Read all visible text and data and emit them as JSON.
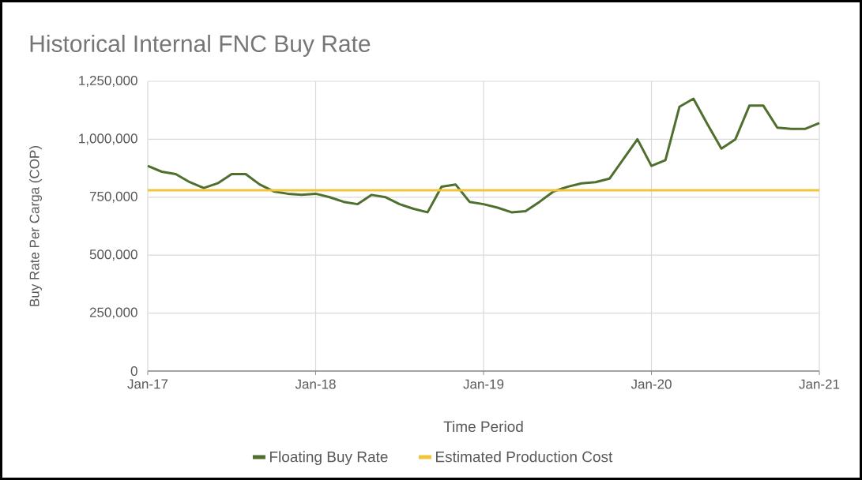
{
  "chart_data": {
    "type": "line",
    "title": "Historical Internal FNC Buy Rate",
    "xlabel": "Time Period",
    "ylabel": "Buy Rate Per Carga (COP)",
    "x": [
      "2017-01",
      "2017-02",
      "2017-03",
      "2017-04",
      "2017-05",
      "2017-06",
      "2017-07",
      "2017-08",
      "2017-09",
      "2017-10",
      "2017-11",
      "2017-12",
      "2018-01",
      "2018-02",
      "2018-03",
      "2018-04",
      "2018-05",
      "2018-06",
      "2018-07",
      "2018-08",
      "2018-09",
      "2018-10",
      "2018-11",
      "2018-12",
      "2019-01",
      "2019-02",
      "2019-03",
      "2019-04",
      "2019-05",
      "2019-06",
      "2019-07",
      "2019-08",
      "2019-09",
      "2019-10",
      "2019-11",
      "2019-12",
      "2020-01",
      "2020-02",
      "2020-03",
      "2020-04",
      "2020-05",
      "2020-06",
      "2020-07",
      "2020-08",
      "2020-09",
      "2020-10",
      "2020-11",
      "2020-12",
      "2021-01"
    ],
    "series": [
      {
        "name": "Floating Buy Rate",
        "color": "#4f6f2f",
        "values": [
          885000,
          860000,
          850000,
          815000,
          790000,
          810000,
          850000,
          850000,
          805000,
          775000,
          765000,
          760000,
          765000,
          750000,
          730000,
          720000,
          760000,
          750000,
          720000,
          700000,
          685000,
          795000,
          805000,
          730000,
          720000,
          705000,
          685000,
          690000,
          730000,
          775000,
          795000,
          810000,
          815000,
          830000,
          915000,
          1000000,
          885000,
          910000,
          1140000,
          1175000,
          1065000,
          960000,
          1000000,
          1145000,
          1145000,
          1050000,
          1045000,
          1045000,
          1070000
        ]
      },
      {
        "name": "Estimated Production Cost",
        "color": "#f0c53a",
        "x": [
          "2017-01",
          "2021-01"
        ],
        "values": [
          780000,
          780000
        ]
      }
    ],
    "xlim": [
      "2017-01",
      "2021-01"
    ],
    "xticks": [
      {
        "value": "2017-01",
        "label": "Jan-17"
      },
      {
        "value": "2018-01",
        "label": "Jan-18"
      },
      {
        "value": "2019-01",
        "label": "Jan-19"
      },
      {
        "value": "2020-01",
        "label": "Jan-20"
      },
      {
        "value": "2021-01",
        "label": "Jan-21"
      }
    ],
    "ylim": [
      0,
      1250000
    ],
    "yticks": [
      0,
      {
        "value": 250000,
        "label": "250,000"
      },
      {
        "value": 500000,
        "label": "500,000"
      },
      {
        "value": 750000,
        "label": "750,000"
      },
      {
        "value": 1000000,
        "label": "1,000,000"
      },
      {
        "value": 1250000,
        "label": "1,250,000"
      }
    ],
    "grid": true,
    "legend": "bottom",
    "marker": "none",
    "line_style": "solid"
  }
}
